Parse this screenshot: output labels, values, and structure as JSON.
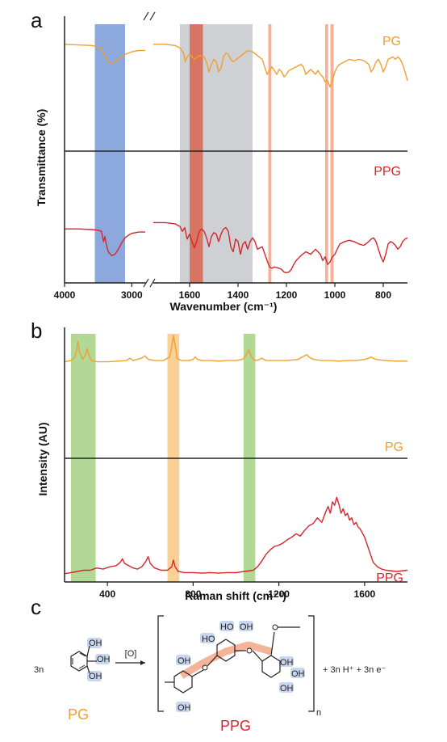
{
  "colors": {
    "pg": "#F0A02E",
    "ppg": "#D6262B",
    "blue_band": "#7F9ED8",
    "gray_band": "#C9CBCE",
    "salmon_band": "#F3A78E",
    "dark_band": "#D86A55",
    "green_band": "#A8D48A",
    "orange_band": "#FBCB8A",
    "oh_highlight": "#C9D6EE",
    "bond_highlight": "#F3B49A"
  },
  "panels": {
    "a": "a",
    "b": "b",
    "c": "c"
  },
  "chart_data": [
    {
      "panel": "a",
      "type": "line",
      "xlabel": "Wavenumber (cm⁻¹)",
      "ylabel": "Transmittance (%)",
      "x_reversed": true,
      "x_break": [
        2800,
        1750
      ],
      "xlim_segments": [
        [
          4000,
          2800
        ],
        [
          1750,
          700
        ]
      ],
      "x_ticks": [
        "4000",
        "3000",
        "1600",
        "1400",
        "1200",
        "1000",
        "800"
      ],
      "x_tick_values": [
        4000,
        3000,
        1600,
        1400,
        1200,
        1000,
        800
      ],
      "highlight_bands": [
        {
          "from": 3550,
          "to": 3100,
          "color": "blue"
        },
        {
          "from": 1640,
          "to": 1340,
          "color": "gray"
        },
        {
          "from": 1600,
          "to": 1545,
          "color": "dark"
        },
        {
          "from": 1275,
          "to": 1262,
          "color": "salmon"
        },
        {
          "from": 1040,
          "to": 1028,
          "color": "salmon"
        },
        {
          "from": 1018,
          "to": 1005,
          "color": "salmon"
        }
      ],
      "series": [
        {
          "name": "PG",
          "segments": [
            {
              "x": [
                4000,
                3800,
                3600,
                3500,
                3450,
                3400,
                3350,
                3300,
                3250,
                3200,
                3150,
                3100,
                3050,
                3000,
                2950,
                2900,
                2850,
                2800
              ],
              "y": [
                0.84,
                0.835,
                0.83,
                0.82,
                0.8,
                0.75,
                0.7,
                0.69,
                0.7,
                0.72,
                0.74,
                0.76,
                0.77,
                0.78,
                0.785,
                0.79,
                0.79,
                0.79
              ]
            },
            {
              "x": [
                1750,
                1700,
                1660,
                1640,
                1625,
                1618,
                1610,
                1600,
                1580,
                1560,
                1540,
                1530,
                1520,
                1510,
                1500,
                1490,
                1480,
                1470,
                1460,
                1450,
                1440,
                1430,
                1420,
                1400,
                1380,
                1360,
                1340,
                1320,
                1300,
                1290,
                1280,
                1270,
                1260,
                1250,
                1240,
                1230,
                1220,
                1210,
                1200,
                1190,
                1180,
                1160,
                1150,
                1140,
                1130,
                1120,
                1110,
                1100,
                1090,
                1080,
                1070,
                1060,
                1050,
                1040,
                1030,
                1020,
                1010,
                1000,
                990,
                980,
                960,
                940,
                920,
                900,
                880,
                860,
                850,
                840,
                830,
                820,
                810,
                800,
                790,
                780,
                770,
                760,
                750,
                740,
                730,
                720,
                710,
                700
              ],
              "y": [
                0.84,
                0.84,
                0.83,
                0.81,
                0.77,
                0.7,
                0.74,
                0.76,
                0.72,
                0.75,
                0.74,
                0.7,
                0.62,
                0.68,
                0.72,
                0.7,
                0.62,
                0.65,
                0.74,
                0.77,
                0.76,
                0.72,
                0.7,
                0.73,
                0.76,
                0.79,
                0.78,
                0.75,
                0.72,
                0.66,
                0.6,
                0.63,
                0.66,
                0.63,
                0.6,
                0.64,
                0.62,
                0.58,
                0.6,
                0.63,
                0.64,
                0.66,
                0.67,
                0.68,
                0.66,
                0.6,
                0.62,
                0.64,
                0.62,
                0.6,
                0.63,
                0.6,
                0.58,
                0.54,
                0.55,
                0.5,
                0.55,
                0.62,
                0.66,
                0.68,
                0.7,
                0.72,
                0.71,
                0.72,
                0.71,
                0.68,
                0.62,
                0.65,
                0.7,
                0.72,
                0.68,
                0.62,
                0.66,
                0.72,
                0.73,
                0.74,
                0.72,
                0.74,
                0.72,
                0.68,
                0.62,
                0.55
              ]
            }
          ]
        },
        {
          "name": "PPG",
          "segments": [
            {
              "x": [
                4000,
                3800,
                3600,
                3500,
                3450,
                3420,
                3400,
                3380,
                3350,
                3300,
                3250,
                3200,
                3150,
                3100,
                3050,
                3000,
                2950,
                2900,
                2850,
                2800
              ],
              "y": [
                0.4,
                0.4,
                0.395,
                0.39,
                0.38,
                0.3,
                0.34,
                0.28,
                0.22,
                0.19,
                0.2,
                0.24,
                0.29,
                0.33,
                0.35,
                0.365,
                0.37,
                0.375,
                0.375,
                0.375
              ]
            },
            {
              "x": [
                1750,
                1700,
                1660,
                1640,
                1630,
                1620,
                1615,
                1610,
                1600,
                1590,
                1580,
                1570,
                1560,
                1550,
                1540,
                1530,
                1520,
                1510,
                1500,
                1490,
                1480,
                1470,
                1460,
                1450,
                1440,
                1430,
                1420,
                1410,
                1400,
                1390,
                1380,
                1370,
                1360,
                1350,
                1340,
                1330,
                1320,
                1300,
                1280,
                1270,
                1260,
                1250,
                1240,
                1230,
                1220,
                1210,
                1200,
                1190,
                1180,
                1170,
                1160,
                1150,
                1140,
                1120,
                1100,
                1080,
                1060,
                1050,
                1040,
                1030,
                1020,
                1010,
                1000,
                990,
                980,
                960,
                940,
                920,
                900,
                880,
                860,
                850,
                840,
                830,
                820,
                810,
                800,
                790,
                780,
                770,
                760,
                750,
                740,
                730,
                720,
                710,
                700
              ],
              "y": [
                0.45,
                0.45,
                0.44,
                0.42,
                0.38,
                0.41,
                0.36,
                0.32,
                0.36,
                0.3,
                0.25,
                0.31,
                0.38,
                0.4,
                0.38,
                0.33,
                0.26,
                0.34,
                0.37,
                0.36,
                0.3,
                0.36,
                0.4,
                0.41,
                0.38,
                0.26,
                0.22,
                0.32,
                0.3,
                0.2,
                0.28,
                0.3,
                0.24,
                0.3,
                0.33,
                0.3,
                0.24,
                0.26,
                0.15,
                0.1,
                0.09,
                0.1,
                0.095,
                0.09,
                0.08,
                0.06,
                0.055,
                0.06,
                0.08,
                0.12,
                0.15,
                0.17,
                0.19,
                0.22,
                0.2,
                0.24,
                0.2,
                0.15,
                0.18,
                0.12,
                0.14,
                0.18,
                0.2,
                0.24,
                0.28,
                0.3,
                0.31,
                0.3,
                0.28,
                0.27,
                0.3,
                0.32,
                0.33,
                0.3,
                0.24,
                0.18,
                0.14,
                0.2,
                0.28,
                0.3,
                0.29,
                0.27,
                0.24,
                0.26,
                0.3,
                0.32,
                0.33
              ]
            }
          ]
        }
      ]
    },
    {
      "panel": "b",
      "type": "line",
      "xlabel": "Raman shift (cm⁻¹)",
      "ylabel": "Intensity (AU)",
      "xlim": [
        200,
        1800
      ],
      "x_ticks": [
        "400",
        "800",
        "1200",
        "1600"
      ],
      "x_tick_values": [
        400,
        800,
        1200,
        1600
      ],
      "highlight_bands": [
        {
          "from": 230,
          "to": 345,
          "color": "green"
        },
        {
          "from": 680,
          "to": 735,
          "color": "orange"
        },
        {
          "from": 1035,
          "to": 1090,
          "color": "green"
        }
      ],
      "series": [
        {
          "name": "PG",
          "x": [
            200,
            230,
            245,
            255,
            262,
            270,
            285,
            298,
            305,
            312,
            325,
            350,
            400,
            450,
            490,
            505,
            520,
            540,
            560,
            575,
            590,
            620,
            660,
            690,
            700,
            708,
            716,
            725,
            745,
            780,
            800,
            810,
            820,
            840,
            880,
            920,
            960,
            1000,
            1030,
            1045,
            1060,
            1070,
            1080,
            1095,
            1110,
            1120,
            1140,
            1180,
            1240,
            1290,
            1310,
            1330,
            1340,
            1360,
            1400,
            1440,
            1480,
            1520,
            1560,
            1600,
            1620,
            1630,
            1650,
            1700,
            1750,
            1800
          ],
          "y": [
            0.78,
            0.79,
            0.81,
            0.86,
            0.95,
            0.86,
            0.8,
            0.84,
            0.89,
            0.84,
            0.79,
            0.78,
            0.78,
            0.785,
            0.79,
            0.81,
            0.79,
            0.8,
            0.81,
            0.83,
            0.8,
            0.79,
            0.79,
            0.82,
            0.9,
            1.0,
            0.92,
            0.81,
            0.79,
            0.79,
            0.8,
            0.82,
            0.8,
            0.79,
            0.79,
            0.785,
            0.79,
            0.79,
            0.8,
            0.83,
            0.88,
            0.83,
            0.8,
            0.79,
            0.8,
            0.81,
            0.79,
            0.79,
            0.79,
            0.8,
            0.82,
            0.84,
            0.82,
            0.8,
            0.79,
            0.79,
            0.785,
            0.79,
            0.79,
            0.8,
            0.81,
            0.82,
            0.8,
            0.79,
            0.785,
            0.785
          ]
        },
        {
          "name": "PPG",
          "x": [
            200,
            230,
            260,
            290,
            320,
            350,
            380,
            410,
            440,
            460,
            470,
            480,
            500,
            520,
            540,
            560,
            580,
            590,
            600,
            620,
            650,
            680,
            700,
            708,
            716,
            730,
            760,
            800,
            840,
            880,
            920,
            960,
            1000,
            1040,
            1080,
            1100,
            1120,
            1140,
            1160,
            1180,
            1200,
            1220,
            1240,
            1260,
            1280,
            1300,
            1320,
            1340,
            1360,
            1380,
            1400,
            1420,
            1430,
            1440,
            1450,
            1460,
            1470,
            1480,
            1490,
            1500,
            1510,
            1520,
            1530,
            1540,
            1550,
            1560,
            1570,
            1580,
            1600,
            1620,
            1640,
            1660,
            1680,
            1700,
            1750,
            1800
          ],
          "y": [
            0.03,
            0.04,
            0.05,
            0.06,
            0.06,
            0.08,
            0.07,
            0.09,
            0.1,
            0.13,
            0.16,
            0.12,
            0.1,
            0.08,
            0.07,
            0.09,
            0.14,
            0.18,
            0.12,
            0.08,
            0.06,
            0.06,
            0.09,
            0.15,
            0.09,
            0.05,
            0.04,
            0.04,
            0.035,
            0.04,
            0.035,
            0.04,
            0.04,
            0.05,
            0.06,
            0.09,
            0.14,
            0.2,
            0.24,
            0.27,
            0.28,
            0.3,
            0.33,
            0.35,
            0.38,
            0.36,
            0.41,
            0.45,
            0.47,
            0.52,
            0.48,
            0.58,
            0.62,
            0.56,
            0.66,
            0.63,
            0.7,
            0.64,
            0.56,
            0.6,
            0.54,
            0.56,
            0.5,
            0.52,
            0.46,
            0.48,
            0.44,
            0.42,
            0.35,
            0.24,
            0.13,
            0.09,
            0.07,
            0.06,
            0.05,
            0.06
          ]
        }
      ]
    }
  ],
  "scheme": {
    "coefficient": "3n",
    "oxidant": "[O]",
    "oh": "OH",
    "ho": "HO",
    "subscript_n": "n",
    "products": "+ 3n H⁺ + 3n e⁻",
    "reactant_label": "PG",
    "product_label": "PPG"
  }
}
